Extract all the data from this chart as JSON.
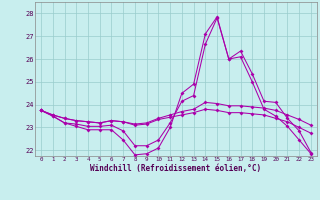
{
  "xlabel": "Windchill (Refroidissement éolien,°C)",
  "bg_color": "#c8eeee",
  "grid_color": "#99cccc",
  "line_color": "#aa00aa",
  "xlim_min": -0.5,
  "xlim_max": 23.5,
  "ylim_min": 21.75,
  "ylim_max": 28.5,
  "yticks": [
    22,
    23,
    24,
    25,
    26,
    27,
    28
  ],
  "xticks": [
    0,
    1,
    2,
    3,
    4,
    5,
    6,
    7,
    8,
    9,
    10,
    11,
    12,
    13,
    14,
    15,
    16,
    17,
    18,
    19,
    20,
    21,
    22,
    23
  ],
  "lines": [
    {
      "x": [
        0,
        1,
        2,
        3,
        4,
        5,
        6,
        7,
        8,
        9,
        10,
        11,
        12,
        13,
        14,
        15,
        16,
        17,
        18,
        19,
        20,
        21,
        22,
        23
      ],
      "y": [
        23.75,
        23.5,
        23.2,
        23.05,
        22.9,
        22.9,
        22.9,
        22.45,
        21.8,
        21.85,
        22.1,
        23.0,
        24.5,
        24.9,
        27.1,
        27.85,
        26.0,
        26.35,
        25.35,
        24.15,
        24.1,
        23.4,
        22.85,
        21.9
      ]
    },
    {
      "x": [
        0,
        1,
        2,
        3,
        4,
        5,
        6,
        7,
        8,
        9,
        10,
        11,
        12,
        13,
        14,
        15,
        16,
        17,
        18,
        19,
        20,
        21,
        22,
        23
      ],
      "y": [
        23.75,
        23.5,
        23.2,
        23.15,
        23.05,
        23.05,
        23.1,
        22.85,
        22.2,
        22.2,
        22.45,
        23.2,
        24.15,
        24.4,
        26.65,
        27.8,
        26.0,
        26.1,
        25.0,
        23.8,
        23.5,
        23.05,
        22.45,
        21.85
      ]
    },
    {
      "x": [
        0,
        1,
        2,
        3,
        4,
        5,
        6,
        7,
        8,
        9,
        10,
        11,
        12,
        13,
        14,
        15,
        16,
        17,
        18,
        19,
        20,
        21,
        22,
        23
      ],
      "y": [
        23.75,
        23.55,
        23.4,
        23.3,
        23.25,
        23.2,
        23.3,
        23.25,
        23.15,
        23.2,
        23.4,
        23.55,
        23.7,
        23.8,
        24.1,
        24.05,
        23.95,
        23.95,
        23.9,
        23.85,
        23.75,
        23.55,
        23.35,
        23.1
      ]
    },
    {
      "x": [
        0,
        1,
        2,
        3,
        4,
        5,
        6,
        7,
        8,
        9,
        10,
        11,
        12,
        13,
        14,
        15,
        16,
        17,
        18,
        19,
        20,
        21,
        22,
        23
      ],
      "y": [
        23.75,
        23.55,
        23.4,
        23.3,
        23.25,
        23.2,
        23.3,
        23.25,
        23.1,
        23.15,
        23.35,
        23.45,
        23.55,
        23.65,
        23.8,
        23.75,
        23.65,
        23.65,
        23.6,
        23.55,
        23.4,
        23.25,
        23.0,
        22.75
      ]
    }
  ]
}
